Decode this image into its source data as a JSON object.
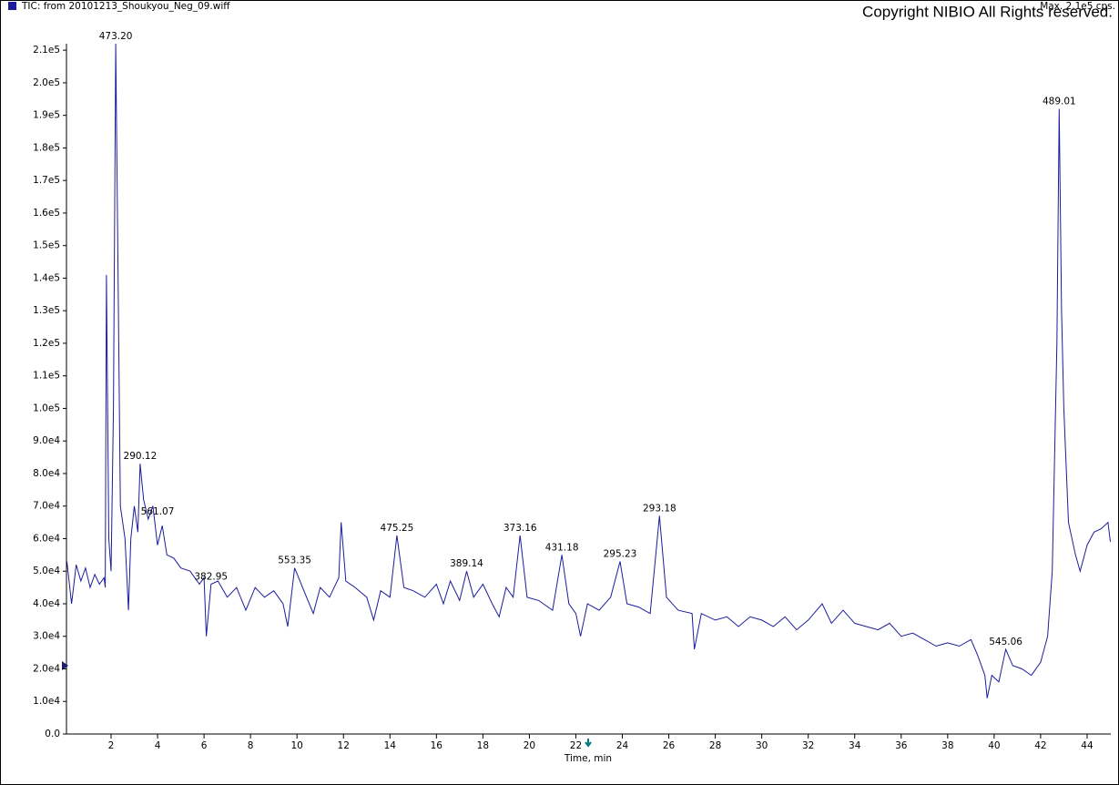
{
  "chart_data": {
    "type": "line",
    "title": "TIC: from 20101213_Shoukyou_Neg_09.wiff",
    "subtitle": "Max. 2.1e5 cps.",
    "copyright": "Copyright NIBIO All Rights reserved.",
    "x_label": "Time, min",
    "xlim": [
      0.08,
      45.02
    ],
    "xticks": [
      2,
      4,
      6,
      8,
      10,
      12,
      14,
      16,
      18,
      20,
      22,
      24,
      26,
      28,
      30,
      32,
      34,
      36,
      38,
      40,
      42,
      44
    ],
    "ylim": [
      0,
      212000
    ],
    "yticks": [
      {
        "value": 0,
        "label": "0.0"
      },
      {
        "value": 10000,
        "label": "1.0e4"
      },
      {
        "value": 20000,
        "label": "2.0e4"
      },
      {
        "value": 30000,
        "label": "3.0e4"
      },
      {
        "value": 40000,
        "label": "4.0e4"
      },
      {
        "value": 50000,
        "label": "5.0e4"
      },
      {
        "value": 60000,
        "label": "6.0e4"
      },
      {
        "value": 70000,
        "label": "7.0e4"
      },
      {
        "value": 80000,
        "label": "8.0e4"
      },
      {
        "value": 90000,
        "label": "9.0e4"
      },
      {
        "value": 100000,
        "label": "1.0e5"
      },
      {
        "value": 110000,
        "label": "1.1e5"
      },
      {
        "value": 120000,
        "label": "1.2e5"
      },
      {
        "value": 130000,
        "label": "1.3e5"
      },
      {
        "value": 140000,
        "label": "1.4e5"
      },
      {
        "value": 150000,
        "label": "1.5e5"
      },
      {
        "value": 160000,
        "label": "1.6e5"
      },
      {
        "value": 170000,
        "label": "1.7e5"
      },
      {
        "value": 180000,
        "label": "1.8e5"
      },
      {
        "value": 190000,
        "label": "1.9e5"
      },
      {
        "value": 200000,
        "label": "2.0e5"
      },
      {
        "value": 210000,
        "label": "2.1e5"
      }
    ],
    "x": [
      0.1,
      0.3,
      0.5,
      0.7,
      0.9,
      1.1,
      1.3,
      1.5,
      1.7,
      1.75,
      1.8,
      1.9,
      2.0,
      2.1,
      2.2,
      2.3,
      2.4,
      2.6,
      2.75,
      2.85,
      3.0,
      3.15,
      3.25,
      3.4,
      3.6,
      3.8,
      4.0,
      4.2,
      4.4,
      4.7,
      5.0,
      5.4,
      5.8,
      6.0,
      6.1,
      6.3,
      6.6,
      7.0,
      7.4,
      7.8,
      8.2,
      8.6,
      9.0,
      9.4,
      9.6,
      9.9,
      10.3,
      10.7,
      11.0,
      11.4,
      11.8,
      11.9,
      12.1,
      12.5,
      13.0,
      13.3,
      13.6,
      14.0,
      14.3,
      14.6,
      15.0,
      15.5,
      16.0,
      16.3,
      16.6,
      17.0,
      17.3,
      17.6,
      18.0,
      18.4,
      18.7,
      19.0,
      19.3,
      19.6,
      19.9,
      20.4,
      21.0,
      21.4,
      21.7,
      22.0,
      22.2,
      22.5,
      23.0,
      23.5,
      23.9,
      24.2,
      24.7,
      25.2,
      25.6,
      25.9,
      26.4,
      27.0,
      27.1,
      27.4,
      28.0,
      28.5,
      29.0,
      29.5,
      30.0,
      30.5,
      31.0,
      31.5,
      32.0,
      32.6,
      33.0,
      33.5,
      34.0,
      34.5,
      35.0,
      35.5,
      36.0,
      36.5,
      37.0,
      37.5,
      38.0,
      38.5,
      39.0,
      39.3,
      39.6,
      39.7,
      39.9,
      40.2,
      40.5,
      40.8,
      41.2,
      41.6,
      42.0,
      42.3,
      42.5,
      42.7,
      42.8,
      42.9,
      43.0,
      43.2,
      43.5,
      43.7,
      44.0,
      44.3,
      44.6,
      44.9,
      45.0
    ],
    "series": [
      {
        "name": "TIC: from 20101213_Shoukyou_Neg_09.wiff",
        "color": "#1c1c9c",
        "values": [
          53000,
          40000,
          52000,
          47000,
          51000,
          45000,
          49000,
          46000,
          48000,
          45000,
          141000,
          60000,
          50000,
          100000,
          212000,
          140000,
          70000,
          60000,
          38000,
          60000,
          70000,
          62000,
          83000,
          72000,
          66000,
          70000,
          58000,
          64000,
          55000,
          54000,
          51000,
          50000,
          46000,
          48000,
          30000,
          46000,
          47000,
          42000,
          45000,
          38000,
          45000,
          42000,
          44000,
          40000,
          33000,
          51000,
          44000,
          37000,
          45000,
          42000,
          48000,
          65000,
          47000,
          45000,
          42000,
          35000,
          44000,
          42000,
          61000,
          45000,
          44000,
          42000,
          46000,
          40000,
          47000,
          41000,
          50000,
          42000,
          46000,
          40000,
          36000,
          45000,
          42000,
          61000,
          42000,
          41000,
          38000,
          55000,
          40000,
          37000,
          30000,
          40000,
          38000,
          42000,
          53000,
          40000,
          39000,
          37000,
          67000,
          42000,
          38000,
          37000,
          26000,
          37000,
          35000,
          36000,
          33000,
          36000,
          35000,
          33000,
          36000,
          32000,
          35000,
          40000,
          34000,
          38000,
          34000,
          33000,
          32000,
          34000,
          30000,
          31000,
          29000,
          27000,
          28000,
          27000,
          29000,
          24000,
          18000,
          11000,
          18000,
          16000,
          26000,
          21000,
          20000,
          18000,
          22000,
          30000,
          50000,
          120000,
          192000,
          130000,
          100000,
          65000,
          55000,
          50000,
          58000,
          62000,
          63000,
          65000,
          59000
        ]
      }
    ],
    "annotations": [
      {
        "text": "473.20",
        "x": 2.2,
        "y": 212000
      },
      {
        "text": "290.12",
        "x": 3.25,
        "y": 83000
      },
      {
        "text": "561.07",
        "x": 4.0,
        "y": 66000
      },
      {
        "text": "382.95",
        "x": 6.3,
        "y": 46000
      },
      {
        "text": "553.35",
        "x": 9.9,
        "y": 51000
      },
      {
        "text": "475.25",
        "x": 14.3,
        "y": 61000
      },
      {
        "text": "389.14",
        "x": 17.3,
        "y": 50000
      },
      {
        "text": "373.16",
        "x": 19.6,
        "y": 61000
      },
      {
        "text": "431.18",
        "x": 21.4,
        "y": 55000
      },
      {
        "text": "295.23",
        "x": 23.9,
        "y": 53000
      },
      {
        "text": "293.18",
        "x": 25.6,
        "y": 67000
      },
      {
        "text": "545.06",
        "x": 40.5,
        "y": 26000
      },
      {
        "text": "489.01",
        "x": 42.8,
        "y": 192000
      }
    ]
  }
}
